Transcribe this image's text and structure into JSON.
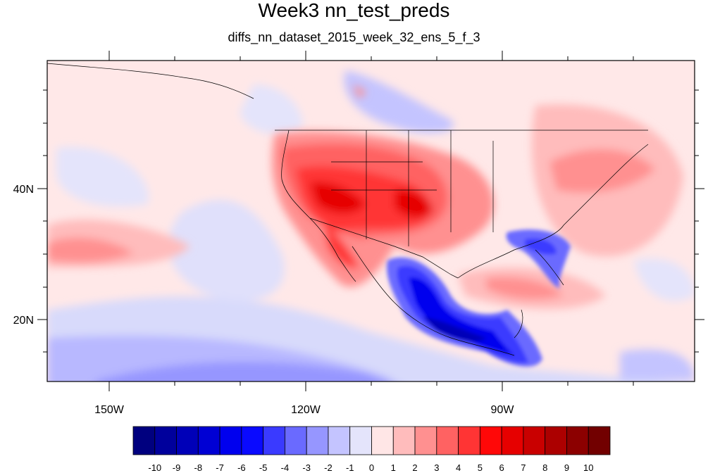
{
  "title": "Week3 nn_test_preds",
  "subtitle": "diffs_nn_dataset_2015_week_32_ens_5_f_3",
  "lon_labels": [
    "150W",
    "120W",
    "90W"
  ],
  "lat_labels": [
    "40N",
    "20N"
  ],
  "colorbar": {
    "labels": [
      "-10",
      "-9",
      "-8",
      "-7",
      "-6",
      "-5",
      "-4",
      "-3",
      "-2",
      "-1",
      "0",
      "1",
      "2",
      "3",
      "4",
      "5",
      "6",
      "7",
      "8",
      "9",
      "10"
    ],
    "colors": [
      "#00007f",
      "#00009c",
      "#0000b8",
      "#0000d4",
      "#0000ee",
      "#0a0aff",
      "#3a3aff",
      "#6a6aff",
      "#9696ff",
      "#c4c4ff",
      "#e4e4fb",
      "#ffe6e6",
      "#ffbcbc",
      "#ff9090",
      "#ff6262",
      "#ff3434",
      "#ff0808",
      "#e60000",
      "#c90000",
      "#ac0000",
      "#8c0000",
      "#720000"
    ]
  },
  "map_extent": {
    "lon_min": -160,
    "lon_max": -60,
    "lat_min": 10,
    "lat_max": 60
  },
  "colors": {
    "background": "#ffe8e8",
    "border": "#000000"
  }
}
